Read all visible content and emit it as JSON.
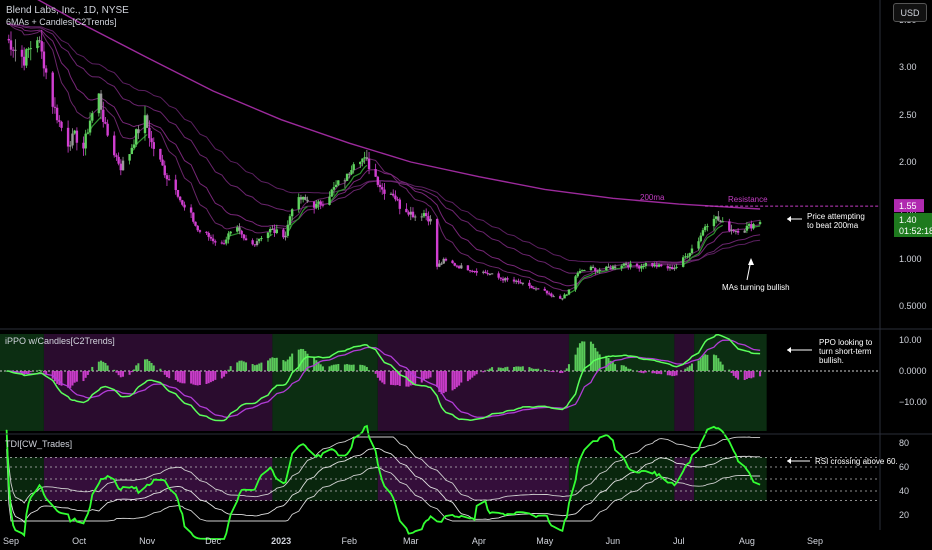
{
  "header": {
    "title": "Blend Labs, Inc., 1D, NYSE",
    "indicator": "6MAs + Candles[C2Trends]",
    "currency_button": "USD"
  },
  "colors": {
    "background": "#000000",
    "bull": "#5fd35f",
    "bear": "#d13fd1",
    "neutral_candle": "#9a9a9a",
    "ma_long": "#9c2a9c",
    "ma_green": "#2f8f2f",
    "zero_line": "#cfcfcf",
    "rsi_line": "#33ff33",
    "resistance": "#c23cc2",
    "bull_zone": "#0c2e12",
    "bear_zone": "#2a0c2e"
  },
  "panels": [
    {
      "id": "price",
      "label": "",
      "axis": "price"
    },
    {
      "id": "ppo",
      "label": "iPPO w/Candles[C2Trends]"
    },
    {
      "id": "tdi",
      "label": "TDI[CW_Trades]"
    }
  ],
  "annotations": [
    {
      "panel": "price",
      "text_lines": [
        "Price attempting",
        "to beat 200ma"
      ]
    },
    {
      "panel": "price",
      "text_lines": [
        "MAs turning bullish"
      ]
    },
    {
      "panel": "price",
      "text_lines": [
        "200ma"
      ]
    },
    {
      "panel": "price",
      "text_lines": [
        "Resistance"
      ]
    },
    {
      "panel": "ppo",
      "text_lines": [
        "PPO looking to",
        "turn short-term",
        "bullish."
      ]
    },
    {
      "panel": "tdi",
      "text_lines": [
        "RSI crossing above 60."
      ]
    }
  ],
  "price_badges": {
    "resistance": "1.55",
    "last": "1.40",
    "countdown": "01:52:18"
  },
  "chart_data": [
    {
      "type": "line",
      "title": "Blend Labs, Inc., 1D, NYSE",
      "xlabel": "",
      "ylabel": "",
      "x_ticks": [
        "Sep",
        "Oct",
        "Nov",
        "Dec",
        "2023",
        "Feb",
        "Mar",
        "Apr",
        "May",
        "Jun",
        "Jul",
        "Aug",
        "Sep"
      ],
      "y_ticks": [
        "0.5000",
        "1.000",
        "1.50",
        "2.00",
        "2.50",
        "3.00",
        "3.50"
      ],
      "ylim": [
        0.28,
        3.75
      ],
      "grid": false,
      "series": [
        {
          "name": "Close",
          "points": [
            [
              "2022-08-29",
              3.3
            ],
            [
              "2022-09-01",
              3.22
            ],
            [
              "2022-09-06",
              3.08
            ],
            [
              "2022-09-08",
              3.18
            ],
            [
              "2022-09-12",
              3.32
            ],
            [
              "2022-09-15",
              3.05
            ],
            [
              "2022-09-19",
              2.62
            ],
            [
              "2022-09-22",
              2.42
            ],
            [
              "2022-09-26",
              2.2
            ],
            [
              "2022-09-29",
              2.28
            ],
            [
              "2022-10-03",
              2.15
            ],
            [
              "2022-10-06",
              2.45
            ],
            [
              "2022-10-10",
              2.7
            ],
            [
              "2022-10-13",
              2.35
            ],
            [
              "2022-10-17",
              2.1
            ],
            [
              "2022-10-20",
              1.95
            ],
            [
              "2022-10-24",
              2.1
            ],
            [
              "2022-10-27",
              2.3
            ],
            [
              "2022-10-31",
              2.45
            ],
            [
              "2022-11-03",
              2.2
            ],
            [
              "2022-11-07",
              2.0
            ],
            [
              "2022-11-10",
              1.85
            ],
            [
              "2022-11-14",
              1.75
            ],
            [
              "2022-11-17",
              1.55
            ],
            [
              "2022-11-21",
              1.45
            ],
            [
              "2022-11-24",
              1.3
            ],
            [
              "2022-11-28",
              1.25
            ],
            [
              "2022-12-01",
              1.2
            ],
            [
              "2022-12-05",
              1.15
            ],
            [
              "2022-12-08",
              1.25
            ],
            [
              "2022-12-12",
              1.3
            ],
            [
              "2022-12-15",
              1.2
            ],
            [
              "2022-12-19",
              1.15
            ],
            [
              "2022-12-22",
              1.22
            ],
            [
              "2022-12-27",
              1.3
            ],
            [
              "2023-01-03",
              1.25
            ],
            [
              "2023-01-06",
              1.55
            ],
            [
              "2023-01-10",
              1.62
            ],
            [
              "2023-01-13",
              1.6
            ],
            [
              "2023-01-17",
              1.55
            ],
            [
              "2023-01-20",
              1.6
            ],
            [
              "2023-01-24",
              1.7
            ],
            [
              "2023-01-27",
              1.78
            ],
            [
              "2023-01-31",
              1.85
            ],
            [
              "2023-02-03",
              2.02
            ],
            [
              "2023-02-06",
              2.05
            ],
            [
              "2023-02-09",
              2.0
            ],
            [
              "2023-02-13",
              1.85
            ],
            [
              "2023-02-16",
              1.72
            ],
            [
              "2023-02-21",
              1.68
            ],
            [
              "2023-02-24",
              1.55
            ],
            [
              "2023-02-28",
              1.5
            ],
            [
              "2023-03-03",
              1.45
            ],
            [
              "2023-03-07",
              1.48
            ],
            [
              "2023-03-10",
              1.4
            ],
            [
              "2023-03-13",
              0.92
            ],
            [
              "2023-03-16",
              0.98
            ],
            [
              "2023-03-20",
              0.95
            ],
            [
              "2023-03-23",
              0.92
            ],
            [
              "2023-03-27",
              0.9
            ],
            [
              "2023-03-30",
              0.88
            ],
            [
              "2023-04-03",
              0.86
            ],
            [
              "2023-04-06",
              0.84
            ],
            [
              "2023-04-10",
              0.8
            ],
            [
              "2023-04-13",
              0.78
            ],
            [
              "2023-04-17",
              0.76
            ],
            [
              "2023-04-20",
              0.74
            ],
            [
              "2023-04-24",
              0.7
            ],
            [
              "2023-04-27",
              0.68
            ],
            [
              "2023-05-01",
              0.65
            ],
            [
              "2023-05-04",
              0.6
            ],
            [
              "2023-05-08",
              0.58
            ],
            [
              "2023-05-11",
              0.62
            ],
            [
              "2023-05-15",
              0.82
            ],
            [
              "2023-05-18",
              0.88
            ],
            [
              "2023-05-22",
              0.9
            ],
            [
              "2023-05-25",
              0.88
            ],
            [
              "2023-05-30",
              0.9
            ],
            [
              "2023-06-02",
              0.92
            ],
            [
              "2023-06-06",
              0.95
            ],
            [
              "2023-06-09",
              0.93
            ],
            [
              "2023-06-13",
              0.92
            ],
            [
              "2023-06-16",
              0.95
            ],
            [
              "2023-06-20",
              0.93
            ],
            [
              "2023-06-23",
              0.92
            ],
            [
              "2023-06-27",
              0.9
            ],
            [
              "2023-06-30",
              0.92
            ],
            [
              "2023-07-05",
              1.05
            ],
            [
              "2023-07-10",
              1.2
            ],
            [
              "2023-07-13",
              1.35
            ],
            [
              "2023-07-17",
              1.45
            ],
            [
              "2023-07-20",
              1.38
            ],
            [
              "2023-07-24",
              1.32
            ],
            [
              "2023-07-27",
              1.3
            ],
            [
              "2023-07-31",
              1.32
            ],
            [
              "2023-08-03",
              1.35
            ],
            [
              "2023-08-07",
              1.4
            ]
          ]
        },
        {
          "name": "200ma",
          "points": [
            [
              "2022-08-29",
              3.9
            ],
            [
              "2022-10-03",
              3.45
            ],
            [
              "2022-11-01",
              3.1
            ],
            [
              "2022-12-01",
              2.75
            ],
            [
              "2023-01-01",
              2.45
            ],
            [
              "2023-02-01",
              2.2
            ],
            [
              "2023-03-01",
              2.0
            ],
            [
              "2023-04-01",
              1.85
            ],
            [
              "2023-05-01",
              1.72
            ],
            [
              "2023-06-01",
              1.63
            ],
            [
              "2023-07-01",
              1.57
            ],
            [
              "2023-08-07",
              1.52
            ]
          ]
        }
      ]
    },
    {
      "type": "line",
      "title": "iPPO w/Candles[C2Trends]",
      "y_ticks": [
        "10.00",
        "0.0000",
        "−10.00"
      ],
      "ylim": [
        -20,
        13
      ],
      "zero_line": true,
      "series": []
    },
    {
      "type": "line",
      "title": "TDI[CW_Trades]",
      "y_ticks": [
        "80",
        "60",
        "40",
        "20"
      ],
      "ylim": [
        13,
        87
      ],
      "levels": [
        68,
        60,
        50,
        40,
        32
      ],
      "series": []
    }
  ]
}
